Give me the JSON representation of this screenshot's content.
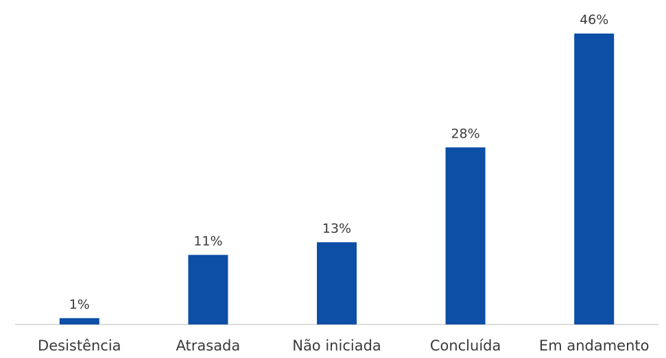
{
  "colors": {
    "bar": "#0d4ea6",
    "axis": "#d0d0d0",
    "text": "#3a3a3a"
  },
  "chart_data": {
    "type": "bar",
    "title": "",
    "xlabel": "",
    "ylabel": "",
    "categories": [
      "Desistência",
      "Atrasada",
      "Não iniciada",
      "Concluída",
      "Em andamento"
    ],
    "values": [
      1,
      11,
      13,
      28,
      46
    ],
    "value_labels": [
      "1%",
      "11%",
      "13%",
      "28%",
      "46%"
    ],
    "ylim": [
      0,
      46
    ],
    "grid": false,
    "legend": "none"
  }
}
